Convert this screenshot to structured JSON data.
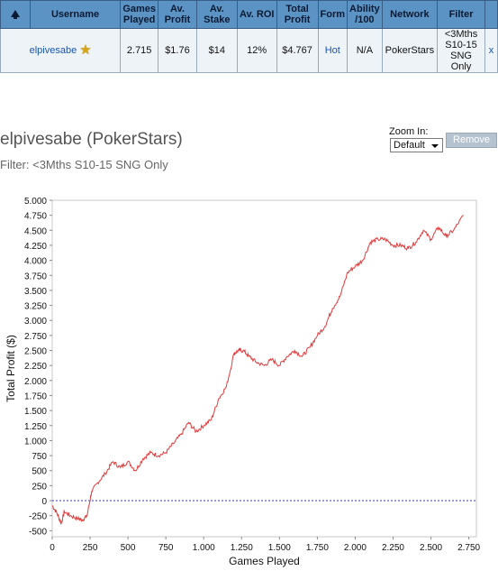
{
  "table": {
    "headers": [
      "",
      "Username",
      "Games Played",
      "Av. Profit",
      "Av. Stake",
      "Av. ROI",
      "Total Profit",
      "Form",
      "Ability /100",
      "Network",
      "Filter"
    ],
    "headers_lines": {
      "games": [
        "Games",
        "Played"
      ],
      "profit": [
        "Av.",
        "Profit"
      ],
      "stake": [
        "Av.",
        "Stake"
      ],
      "total": [
        "Total",
        "Profit"
      ],
      "ability": [
        "Ability",
        "/100"
      ]
    },
    "row": {
      "username": "elpivesabe",
      "games_played": "2.715",
      "av_profit": "$1.76",
      "av_stake": "$14",
      "av_roi": "12%",
      "total_profit": "$4.767",
      "form": "Hot",
      "ability": "N/A",
      "network": "PokerStars",
      "filter_lines": [
        "<3Mths",
        "S10-15",
        "SNG Only"
      ],
      "remove": "x"
    }
  },
  "chart_header": {
    "title": "elpivesabe (PokerStars)",
    "filter": "Filter: <3Mths S10-15 SNG Only",
    "zoom_label": "Zoom In:",
    "zoom_value": "Default",
    "remove_button": "Remove"
  },
  "colors": {
    "header_bg": "#5b93c4",
    "line": "#e23a3a",
    "zero_line": "#3333cc"
  },
  "chart_data": {
    "type": "line",
    "xlabel": "Games Played",
    "ylabel": "Total Profit ($)",
    "xlim": [
      0,
      2800
    ],
    "ylim": [
      -600,
      5000
    ],
    "x_ticks": [
      0,
      250,
      500,
      750,
      1000,
      1250,
      1500,
      1750,
      2000,
      2250,
      2500,
      2750
    ],
    "x_tick_labels": [
      "0",
      "250",
      "500",
      "750",
      "1.000",
      "1.250",
      "1.500",
      "1.750",
      "2.000",
      "2.250",
      "2.500",
      "2.750"
    ],
    "y_ticks": [
      -500,
      -250,
      0,
      250,
      500,
      750,
      1000,
      1250,
      1500,
      1750,
      2000,
      2250,
      2500,
      2750,
      3000,
      3250,
      3500,
      3750,
      4000,
      4250,
      4500,
      4750,
      5000
    ],
    "y_tick_labels": [
      "-500",
      "-250",
      "0",
      "250",
      "500",
      "750",
      "1.000",
      "1.250",
      "1.500",
      "1.750",
      "2.000",
      "2.250",
      "2.500",
      "2.750",
      "3.000",
      "3.250",
      "3.500",
      "3.750",
      "4.000",
      "4.250",
      "4.500",
      "4.750",
      "5.000"
    ],
    "zero_reference_line": true,
    "x": [
      0,
      30,
      60,
      80,
      120,
      170,
      200,
      230,
      260,
      300,
      350,
      400,
      450,
      500,
      550,
      600,
      650,
      700,
      750,
      800,
      850,
      900,
      950,
      1000,
      1050,
      1100,
      1150,
      1200,
      1230,
      1260,
      1300,
      1350,
      1400,
      1450,
      1500,
      1550,
      1600,
      1650,
      1700,
      1750,
      1800,
      1850,
      1900,
      1950,
      2000,
      2050,
      2100,
      2150,
      2200,
      2250,
      2300,
      2350,
      2400,
      2450,
      2500,
      2550,
      2600,
      2650,
      2715
    ],
    "y": [
      -80,
      -200,
      -380,
      -180,
      -250,
      -300,
      -320,
      -250,
      150,
      300,
      450,
      650,
      550,
      650,
      500,
      700,
      800,
      750,
      800,
      950,
      1100,
      1300,
      1150,
      1250,
      1350,
      1700,
      1900,
      2450,
      2500,
      2500,
      2400,
      2300,
      2250,
      2350,
      2250,
      2400,
      2500,
      2400,
      2550,
      2750,
      2900,
      3200,
      3400,
      3800,
      3900,
      4000,
      4300,
      4350,
      4350,
      4250,
      4250,
      4200,
      4300,
      4500,
      4350,
      4550,
      4400,
      4500,
      4750
    ]
  }
}
